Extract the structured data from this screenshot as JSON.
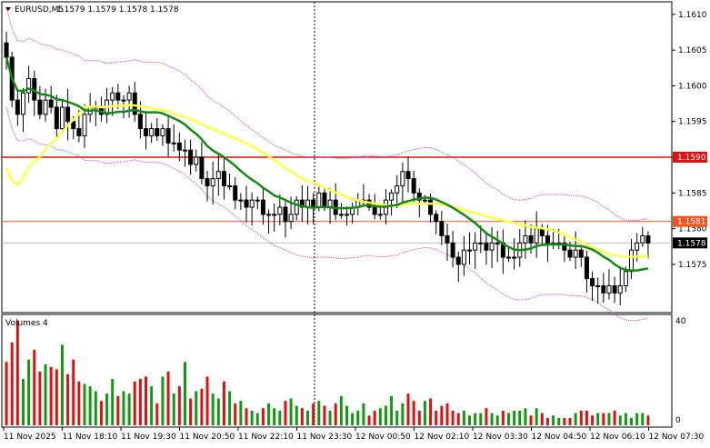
{
  "header": {
    "symbol_line": "EURUSD,M5",
    "ohlc": "1.1579 1.1579 1.1578 1.1578"
  },
  "volume_panel": {
    "title": "Volumes 4",
    "axis_top": "40",
    "axis_bottom": "0"
  },
  "colors": {
    "ma_fast": "#138a13",
    "ma_slow": "#ffff44",
    "envelope": "#c040c0",
    "level_line": "#dd1111",
    "bull_candle": "#ffffff",
    "bear_candle": "#000000",
    "volume_bar": "#dd1111",
    "volume_bar_up": "#119911"
  },
  "chart_data": {
    "type": "candlestick",
    "price_axis": {
      "min": 1.5705,
      "max": 1.1611,
      "ticks": [
        "1.1610",
        "1.1605",
        "1.1600",
        "1.1595",
        "1.1590",
        "1.1585",
        "1.1580",
        "1.1575"
      ]
    },
    "time_labels": [
      "11 Nov 2025",
      "11 Nov 18:10",
      "11 Nov 19:30",
      "11 Nov 20:50",
      "11 Nov 22:10",
      "11 Nov 23:30",
      "12 Nov 00:50",
      "12 Nov 02:10",
      "12 Nov 03:30",
      "12 Nov 04:50",
      "12 Nov 06:10",
      "12 Nov 07:30"
    ],
    "price_labels": [
      {
        "value": 1.159,
        "text": "1.1590",
        "color": "#dd1111"
      },
      {
        "value": 1.1581,
        "text": "1.1581",
        "color": "#ee5522"
      },
      {
        "value": 1.1578,
        "text": "1.1578",
        "color": "#000000"
      }
    ],
    "close": [
      1.1604,
      1.1598,
      1.1596,
      1.1599,
      1.1601,
      1.1598,
      1.1596,
      1.1598,
      1.1597,
      1.1594,
      1.1597,
      1.1595,
      1.1594,
      1.1593,
      1.1596,
      1.1597,
      1.1597,
      1.1596,
      1.1598,
      1.1599,
      1.1598,
      1.1598,
      1.1599,
      1.1596,
      1.1594,
      1.1593,
      1.1594,
      1.1593,
      1.1594,
      1.1592,
      1.1592,
      1.1591,
      1.1591,
      1.1589,
      1.159,
      1.1587,
      1.1586,
      1.1587,
      1.1588,
      1.1586,
      1.1586,
      1.1584,
      1.1584,
      1.1583,
      1.1584,
      1.1584,
      1.1582,
      1.1582,
      1.1582,
      1.1583,
      1.1581,
      1.1582,
      1.1584,
      1.1583,
      1.1584,
      1.1583,
      1.1585,
      1.1583,
      1.1584,
      1.1582,
      1.1582,
      1.1582,
      1.1583,
      1.1584,
      1.1584,
      1.1583,
      1.1582,
      1.1582,
      1.1584,
      1.1585,
      1.1586,
      1.1588,
      1.1587,
      1.1585,
      1.1584,
      1.1584,
      1.1582,
      1.1581,
      1.1579,
      1.1578,
      1.1576,
      1.1575,
      1.1577,
      1.1577,
      1.1578,
      1.1578,
      1.1577,
      1.1578,
      1.1578,
      1.1576,
      1.1576,
      1.1576,
      1.1578,
      1.1579,
      1.1578,
      1.158,
      1.1579,
      1.1578,
      1.1578,
      1.1578,
      1.1577,
      1.1576,
      1.1577,
      1.1576,
      1.1573,
      1.1572,
      1.1572,
      1.1571,
      1.1572,
      1.1571,
      1.1572,
      1.1574,
      1.1577,
      1.1578,
      1.1579,
      1.1578
    ],
    "volume": [
      26,
      34,
      43,
      19,
      27,
      31,
      22,
      25,
      24,
      23,
      33,
      21,
      27,
      18,
      17,
      16,
      14,
      10,
      13,
      19,
      12,
      14,
      13,
      18,
      19,
      20,
      16,
      9,
      20,
      22,
      13,
      16,
      26,
      11,
      14,
      15,
      20,
      13,
      11,
      18,
      14,
      9,
      10,
      7,
      6,
      5,
      7,
      9,
      7,
      6,
      10,
      11,
      8,
      7,
      6,
      9,
      10,
      8,
      6,
      9,
      12,
      8,
      5,
      6,
      9,
      4,
      6,
      7,
      8,
      12,
      6,
      9,
      13,
      10,
      6,
      10,
      11,
      6,
      8,
      9,
      6,
      5,
      6,
      4,
      5,
      5,
      7,
      5,
      4,
      6,
      5,
      6,
      6,
      7,
      4,
      7,
      5,
      3,
      4,
      3,
      3,
      3,
      5,
      6,
      6,
      4,
      5,
      5,
      5,
      6,
      4,
      5,
      3,
      5,
      5,
      4
    ]
  }
}
